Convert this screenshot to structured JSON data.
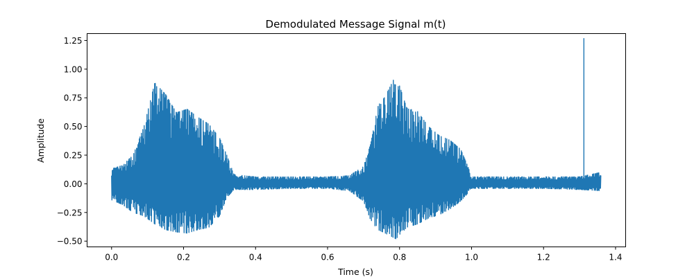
{
  "chart_data": {
    "type": "line",
    "title": "Demodulated Message Signal m(t)",
    "xlabel": "Time (s)",
    "ylabel": "Amplitude",
    "xlim": [
      -0.068,
      1.428
    ],
    "ylim": [
      -0.55,
      1.31
    ],
    "xticks": [
      0.0,
      0.2,
      0.4,
      0.6,
      0.8,
      1.0,
      1.2,
      1.4
    ],
    "xtick_labels": [
      "0.0",
      "0.2",
      "0.4",
      "0.6",
      "0.8",
      "1.0",
      "1.2",
      "1.4"
    ],
    "yticks": [
      -0.5,
      -0.25,
      0.0,
      0.25,
      0.5,
      0.75,
      1.0,
      1.25
    ],
    "ytick_labels": [
      "−0.50",
      "−0.25",
      "0.00",
      "0.25",
      "0.50",
      "0.75",
      "1.00",
      "1.25"
    ],
    "grid": false,
    "color": "#1f77b4",
    "signal_span": [
      0.0,
      1.36
    ],
    "envelope": {
      "t": [
        0.0,
        0.03,
        0.06,
        0.09,
        0.12,
        0.15,
        0.18,
        0.21,
        0.24,
        0.27,
        0.3,
        0.32,
        0.34,
        0.4,
        0.5,
        0.6,
        0.66,
        0.7,
        0.72,
        0.74,
        0.76,
        0.79,
        0.82,
        0.85,
        0.88,
        0.91,
        0.94,
        0.97,
        0.99,
        1.0,
        1.1,
        1.2,
        1.3,
        1.36
      ],
      "upper": [
        0.13,
        0.16,
        0.25,
        0.5,
        0.88,
        0.78,
        0.62,
        0.65,
        0.58,
        0.52,
        0.4,
        0.25,
        0.08,
        0.06,
        0.06,
        0.06,
        0.07,
        0.15,
        0.35,
        0.68,
        0.76,
        0.95,
        0.66,
        0.63,
        0.5,
        0.42,
        0.38,
        0.3,
        0.15,
        0.06,
        0.06,
        0.06,
        0.06,
        0.1
      ],
      "lower": [
        -0.14,
        -0.18,
        -0.25,
        -0.28,
        -0.35,
        -0.4,
        -0.42,
        -0.43,
        -0.4,
        -0.38,
        -0.28,
        -0.12,
        -0.05,
        -0.05,
        -0.04,
        -0.04,
        -0.06,
        -0.15,
        -0.32,
        -0.4,
        -0.43,
        -0.48,
        -0.38,
        -0.35,
        -0.3,
        -0.27,
        -0.22,
        -0.15,
        -0.08,
        -0.04,
        -0.04,
        -0.04,
        -0.05,
        -0.06
      ]
    },
    "spike": {
      "x": 1.312,
      "y": 1.27,
      "min": 0.03
    }
  }
}
